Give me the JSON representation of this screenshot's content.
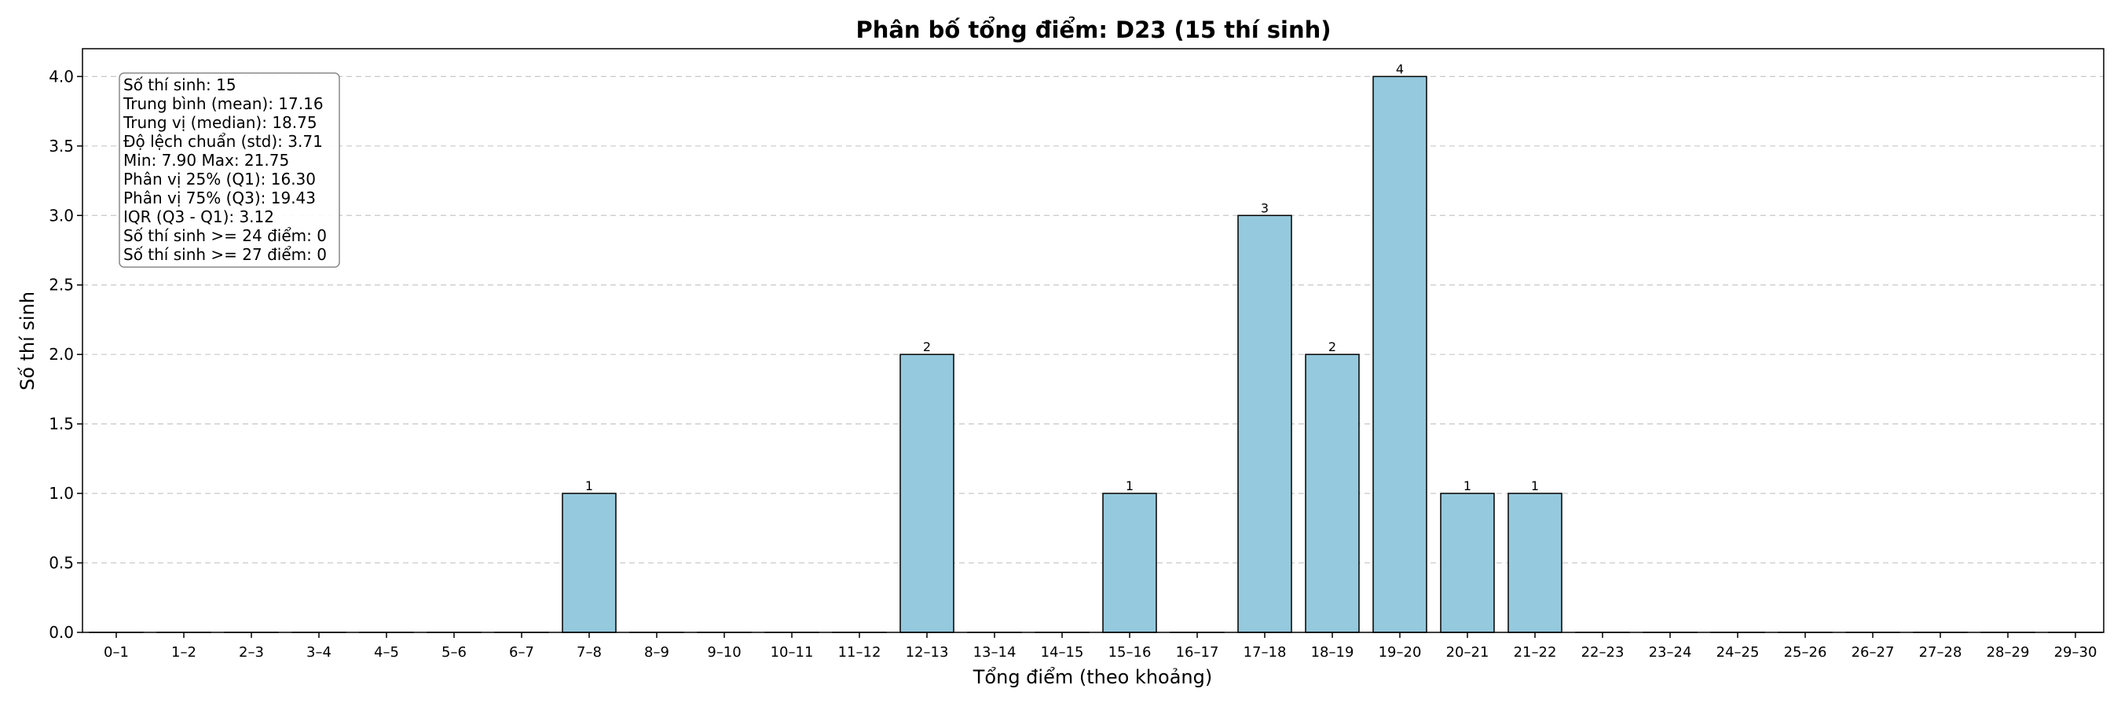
{
  "chart_data": {
    "type": "bar",
    "title": "Phân bố tổng điểm: D23 (15 thí sinh)",
    "xlabel": "Tổng điểm (theo khoảng)",
    "ylabel": "Số thí sinh",
    "ylim": [
      0,
      4.2
    ],
    "yticks": [
      "0.0",
      "0.5",
      "1.0",
      "1.5",
      "2.0",
      "2.5",
      "3.0",
      "3.5",
      "4.0"
    ],
    "grid": "y-dashed",
    "colors": {
      "bar": "#95c9dd",
      "edge": "#000000",
      "grid": "#c8c8c8"
    },
    "categories": [
      "0–1",
      "1–2",
      "2–3",
      "3–4",
      "4–5",
      "5–6",
      "6–7",
      "7–8",
      "8–9",
      "9–10",
      "10–11",
      "11–12",
      "12–13",
      "13–14",
      "14–15",
      "15–16",
      "16–17",
      "17–18",
      "18–19",
      "19–20",
      "20–21",
      "21–22",
      "22–23",
      "23–24",
      "24–25",
      "25–26",
      "26–27",
      "27–28",
      "28–29",
      "29–30"
    ],
    "values": [
      0,
      0,
      0,
      0,
      0,
      0,
      0,
      1,
      0,
      0,
      0,
      0,
      2,
      0,
      0,
      1,
      0,
      3,
      2,
      4,
      1,
      1,
      0,
      0,
      0,
      0,
      0,
      0,
      0,
      0
    ],
    "stats_box": [
      "Số thí sinh: 15",
      "Trung bình (mean): 17.16",
      "Trung vị (median): 18.75",
      "Độ lệch chuẩn (std): 3.71",
      "Min: 7.90   Max: 21.75",
      "Phân vị 25% (Q1): 16.30",
      "Phân vị 75% (Q3): 19.43",
      "IQR (Q3 - Q1): 3.12",
      "Số thí sinh >= 24 điểm: 0",
      "Số thí sinh >= 27 điểm: 0"
    ]
  }
}
